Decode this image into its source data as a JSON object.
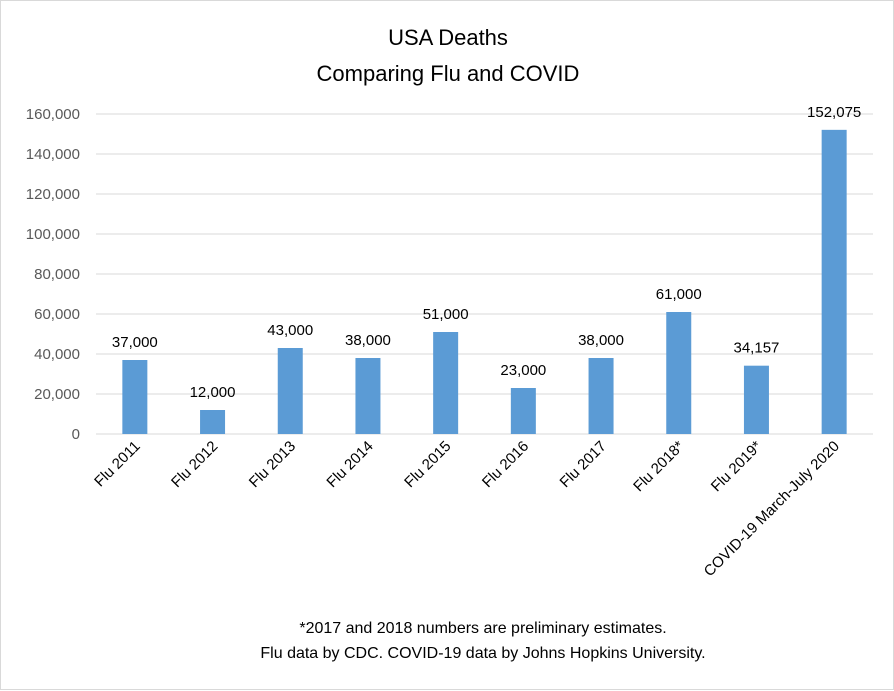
{
  "chart_data": {
    "type": "bar",
    "title": "USA Deaths",
    "subtitle": "Comparing Flu and COVID",
    "categories": [
      "Flu 2011",
      "Flu 2012",
      "Flu 2013",
      "Flu 2014",
      "Flu 2015",
      "Flu 2016",
      "Flu 2017",
      "Flu 2018*",
      "Flu 2019*",
      "COVID-19 March-July 2020"
    ],
    "values": [
      37000,
      12000,
      43000,
      38000,
      51000,
      23000,
      38000,
      61000,
      34157,
      152075
    ],
    "data_labels": [
      "37,000",
      "12,000",
      "43,000",
      "38,000",
      "51,000",
      "23,000",
      "38,000",
      "61,000",
      "34,157",
      "152,075"
    ],
    "ylim": [
      0,
      160000
    ],
    "yticks": [
      0,
      20000,
      40000,
      60000,
      80000,
      100000,
      120000,
      140000,
      160000
    ],
    "ytick_labels": [
      "0",
      "20,000",
      "40,000",
      "60,000",
      "80,000",
      "100,000",
      "120,000",
      "140,000",
      "160,000"
    ],
    "grid": true,
    "legend": "none",
    "bar_color": "#5b9bd5",
    "gridline_color": "#d9d9d9",
    "footnotes": [
      "*2017 and 2018 numbers are preliminary estimates.",
      "Flu data by CDC. COVID-19 data by Johns Hopkins University."
    ]
  }
}
